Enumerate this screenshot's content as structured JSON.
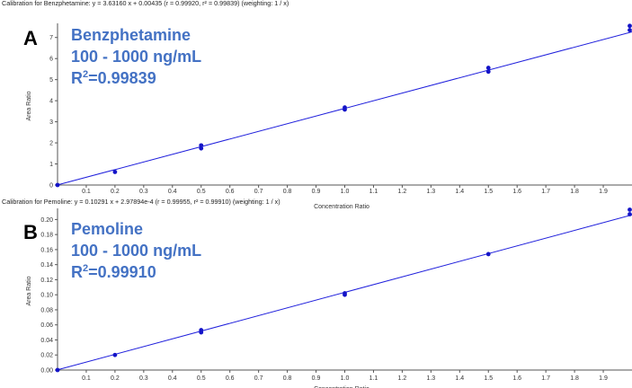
{
  "chart_data": [
    {
      "type": "scatter",
      "panel_letter": "A",
      "calibration_text": "Calibration for Benzphetamine: y = 3.63160 x + 0.00435 (r = 0.99920, r² = 0.99839)  (weighting: 1 / x)",
      "annotation": {
        "compound": "Benzphetamine",
        "range": "100 - 1000 ng/mL",
        "r2_prefix": "R",
        "r2_sup": "2",
        "r2_value": "=0.99839"
      },
      "ylabel": "Area Ratio",
      "xlabel": "Concentration Ratio",
      "xlim": [
        0,
        2.0
      ],
      "ylim": [
        0,
        7.5
      ],
      "x_ticks": [
        "0.1",
        "0.2",
        "0.3",
        "0.4",
        "0.5",
        "0.6",
        "0.7",
        "0.8",
        "0.9",
        "1.0",
        "1.1",
        "1.2",
        "1.3",
        "1.4",
        "1.5",
        "1.6",
        "1.7",
        "1.8",
        "1.9"
      ],
      "y_ticks": [
        "0",
        "1",
        "2",
        "3",
        "4",
        "5",
        "6",
        "7"
      ],
      "fit": {
        "slope": 3.6316,
        "intercept": 0.00435
      },
      "points": [
        {
          "x": 0.0,
          "y": 0.0
        },
        {
          "x": 0.2,
          "y": 0.62
        },
        {
          "x": 0.5,
          "y": 1.74
        },
        {
          "x": 0.5,
          "y": 1.88
        },
        {
          "x": 1.0,
          "y": 3.58
        },
        {
          "x": 1.0,
          "y": 3.68
        },
        {
          "x": 1.5,
          "y": 5.38
        },
        {
          "x": 1.5,
          "y": 5.56
        },
        {
          "x": 2.0,
          "y": 7.35
        },
        {
          "x": 2.0,
          "y": 7.55
        }
      ],
      "line_color": "#1f1fdc",
      "point_color": "#1414c8"
    },
    {
      "type": "scatter",
      "panel_letter": "B",
      "calibration_text": "Calibration for Pemoline: y = 0.10291 x + 2.97894e-4 (r = 0.99955, r² = 0.99910)  (weighting: 1 / x)",
      "annotation": {
        "compound": "Pemoline",
        "range": "100 - 1000 ng/mL",
        "r2_prefix": "R",
        "r2_sup": "2",
        "r2_value": "=0.99910"
      },
      "ylabel": "Area Ratio",
      "xlabel": "Concentration Ratio",
      "xlim": [
        0,
        2.0
      ],
      "ylim": [
        0,
        0.21
      ],
      "x_ticks": [
        "0.1",
        "0.2",
        "0.3",
        "0.4",
        "0.5",
        "0.6",
        "0.7",
        "0.8",
        "0.9",
        "1.0",
        "1.1",
        "1.2",
        "1.3",
        "1.4",
        "1.5",
        "1.6",
        "1.7",
        "1.8",
        "1.9"
      ],
      "y_ticks": [
        "0.00",
        "0.02",
        "0.04",
        "0.06",
        "0.08",
        "0.10",
        "0.12",
        "0.14",
        "0.16",
        "0.18",
        "0.20"
      ],
      "fit": {
        "slope": 0.10291,
        "intercept": 0.000297894
      },
      "points": [
        {
          "x": 0.0,
          "y": 0.0
        },
        {
          "x": 0.2,
          "y": 0.02
        },
        {
          "x": 0.5,
          "y": 0.05
        },
        {
          "x": 0.5,
          "y": 0.053
        },
        {
          "x": 1.0,
          "y": 0.1
        },
        {
          "x": 1.0,
          "y": 0.102
        },
        {
          "x": 1.5,
          "y": 0.154
        },
        {
          "x": 2.0,
          "y": 0.207
        },
        {
          "x": 2.0,
          "y": 0.213
        }
      ],
      "line_color": "#1f1fdc",
      "point_color": "#1414c8"
    }
  ]
}
